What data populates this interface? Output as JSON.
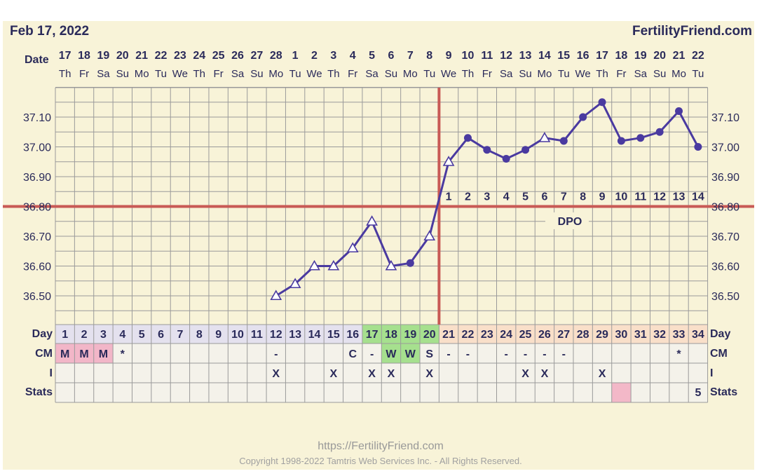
{
  "header": {
    "date": "Feb 17, 2022",
    "brand": "FertilityFriend.com"
  },
  "footer": {
    "url": "https://FertilityFriend.com",
    "copyright": "Copyright 1998-2022 Tamtris Web Services Inc. - All Rights Reserved."
  },
  "colors": {
    "background": "#f8f3d8",
    "grid": "#9a9a9a",
    "line": "#4a3aa0",
    "coverline": "#c85a55",
    "text": "#2a2a5a",
    "cm_m": "#f2b6c8",
    "fertile_green": "#a6e08e",
    "luteal_band": "#f9dfc9",
    "follicular_band": "#e4e1ee"
  },
  "labels": {
    "date": "Date",
    "day": "Day",
    "cm": "CM",
    "i": "I",
    "stats": "Stats",
    "dpo": "DPO"
  },
  "chart_data": {
    "type": "line",
    "title": "",
    "ylim": [
      36.4,
      37.2
    ],
    "y_ticks": [
      "36.50",
      "36.60",
      "36.70",
      "36.80",
      "36.90",
      "37.00",
      "37.10"
    ],
    "coverline": 36.8,
    "ovulation_day": 20,
    "dates": [
      "17",
      "18",
      "19",
      "20",
      "21",
      "22",
      "23",
      "24",
      "25",
      "26",
      "27",
      "28",
      "1",
      "2",
      "3",
      "4",
      "5",
      "6",
      "7",
      "8",
      "9",
      "10",
      "11",
      "12",
      "13",
      "14",
      "15",
      "16",
      "17",
      "18",
      "19",
      "20",
      "21",
      "22"
    ],
    "weekdays": [
      "Th",
      "Fr",
      "Sa",
      "Su",
      "Mo",
      "Tu",
      "We",
      "Th",
      "Fr",
      "Sa",
      "Su",
      "Mo",
      "Tu",
      "We",
      "Th",
      "Fr",
      "Sa",
      "Su",
      "Mo",
      "Tu",
      "We",
      "Th",
      "Fr",
      "Sa",
      "Su",
      "Mo",
      "Tu",
      "We",
      "Th",
      "Fr",
      "Sa",
      "Su",
      "Mo",
      "Tu"
    ],
    "days": [
      "1",
      "2",
      "3",
      "4",
      "5",
      "6",
      "7",
      "8",
      "9",
      "10",
      "11",
      "12",
      "13",
      "14",
      "15",
      "16",
      "17",
      "18",
      "19",
      "20",
      "21",
      "22",
      "23",
      "24",
      "25",
      "26",
      "27",
      "28",
      "29",
      "30",
      "31",
      "32",
      "33",
      "34"
    ],
    "dpo_labels": [
      "1",
      "2",
      "3",
      "4",
      "5",
      "6",
      "7",
      "8",
      "9",
      "10",
      "11",
      "12",
      "13",
      "14"
    ],
    "temperatures": [
      {
        "day": 12,
        "temp": 36.5,
        "marker": "triangle"
      },
      {
        "day": 13,
        "temp": 36.54,
        "marker": "triangle"
      },
      {
        "day": 14,
        "temp": 36.6,
        "marker": "triangle"
      },
      {
        "day": 15,
        "temp": 36.6,
        "marker": "triangle"
      },
      {
        "day": 16,
        "temp": 36.66,
        "marker": "triangle"
      },
      {
        "day": 17,
        "temp": 36.75,
        "marker": "triangle"
      },
      {
        "day": 18,
        "temp": 36.6,
        "marker": "triangle"
      },
      {
        "day": 19,
        "temp": 36.61,
        "marker": "dot"
      },
      {
        "day": 20,
        "temp": 36.7,
        "marker": "triangle"
      },
      {
        "day": 21,
        "temp": 36.95,
        "marker": "triangle"
      },
      {
        "day": 22,
        "temp": 37.03,
        "marker": "dot"
      },
      {
        "day": 23,
        "temp": 36.99,
        "marker": "dot"
      },
      {
        "day": 24,
        "temp": 36.96,
        "marker": "dot"
      },
      {
        "day": 25,
        "temp": 36.99,
        "marker": "dot"
      },
      {
        "day": 26,
        "temp": 37.03,
        "marker": "triangle"
      },
      {
        "day": 27,
        "temp": 37.02,
        "marker": "dot"
      },
      {
        "day": 28,
        "temp": 37.1,
        "marker": "dot"
      },
      {
        "day": 29,
        "temp": 37.15,
        "marker": "dot"
      },
      {
        "day": 30,
        "temp": 37.02,
        "marker": "dot"
      },
      {
        "day": 31,
        "temp": 37.03,
        "marker": "dot"
      },
      {
        "day": 32,
        "temp": 37.05,
        "marker": "dot"
      },
      {
        "day": 33,
        "temp": 37.12,
        "marker": "dot"
      },
      {
        "day": 34,
        "temp": 37.0,
        "marker": "dot"
      }
    ],
    "cm": [
      "M",
      "M",
      "M",
      "*",
      "",
      "",
      "",
      "",
      "",
      "",
      "",
      "-",
      "",
      "",
      "",
      "C",
      "-",
      "W",
      "W",
      "S",
      "-",
      "-",
      "",
      "-",
      "-",
      "-",
      "-",
      "",
      "",
      "",
      "",
      "",
      "*",
      ""
    ],
    "intercourse": [
      "",
      "",
      "",
      "",
      "",
      "",
      "",
      "",
      "",
      "",
      "",
      "X",
      "",
      "",
      "X",
      "",
      "X",
      "X",
      "",
      "X",
      "",
      "",
      "",
      "",
      "X",
      "X",
      "",
      "",
      "X",
      "",
      "",
      "",
      "",
      ""
    ],
    "stats": [
      "",
      "",
      "",
      "",
      "",
      "",
      "",
      "",
      "",
      "",
      "",
      "",
      "",
      "",
      "",
      "",
      "",
      "",
      "",
      "",
      "",
      "",
      "",
      "",
      "",
      "",
      "",
      "",
      "",
      "",
      "",
      "",
      "",
      "5"
    ],
    "stats_highlight_day": 30
  }
}
